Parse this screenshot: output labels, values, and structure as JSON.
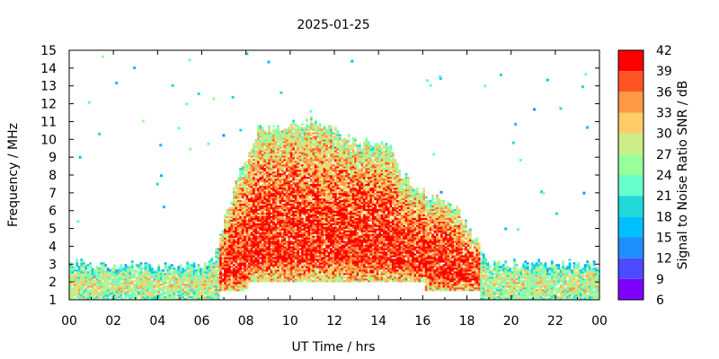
{
  "chart_data": {
    "type": "heatmap",
    "title": "2025-01-25",
    "xlabel": "UT Time / hrs",
    "ylabel": "Frequency / MHz",
    "colorbar_label": "Signal to Noise Ratio SNR / dB",
    "xlim": [
      0,
      24
    ],
    "ylim": [
      1,
      15
    ],
    "x_ticks": [
      "00",
      "02",
      "04",
      "06",
      "08",
      "10",
      "12",
      "14",
      "16",
      "18",
      "20",
      "22",
      "00"
    ],
    "y_ticks": [
      "1",
      "2",
      "3",
      "4",
      "5",
      "6",
      "7",
      "8",
      "9",
      "10",
      "11",
      "12",
      "13",
      "14",
      "15"
    ],
    "colorbar": {
      "range": [
        6,
        42
      ],
      "ticks": [
        "6",
        "9",
        "12",
        "15",
        "18",
        "21",
        "24",
        "27",
        "30",
        "33",
        "36",
        "39",
        "42"
      ],
      "colors": [
        "#7f00ff",
        "#4b4bff",
        "#1f8fff",
        "#00bfff",
        "#20d8d8",
        "#66ffcc",
        "#99ff99",
        "#ccee88",
        "#ffcc66",
        "#ff9944",
        "#ff5522",
        "#ff0000"
      ]
    },
    "grid": false,
    "data_summary": {
      "time_resolution_hrs": 0.1,
      "freq_resolution_mhz": 0.1,
      "low_band_top_mhz": [
        [
          0,
          3.0
        ],
        [
          5.5,
          2.8
        ],
        [
          6.5,
          3.2
        ],
        [
          7.0,
          5.5
        ],
        [
          7.5,
          7.5
        ],
        [
          8.5,
          10.5
        ],
        [
          11.0,
          11.0
        ],
        [
          13.0,
          9.8
        ],
        [
          14.5,
          9.7
        ],
        [
          15.0,
          8.0
        ],
        [
          16.0,
          7.0
        ],
        [
          17.5,
          6.0
        ],
        [
          18.5,
          4.0
        ],
        [
          19.0,
          3.0
        ],
        [
          24,
          2.9
        ]
      ],
      "day_core_snr_db": 40,
      "night_band_snr_db": 24
    }
  }
}
